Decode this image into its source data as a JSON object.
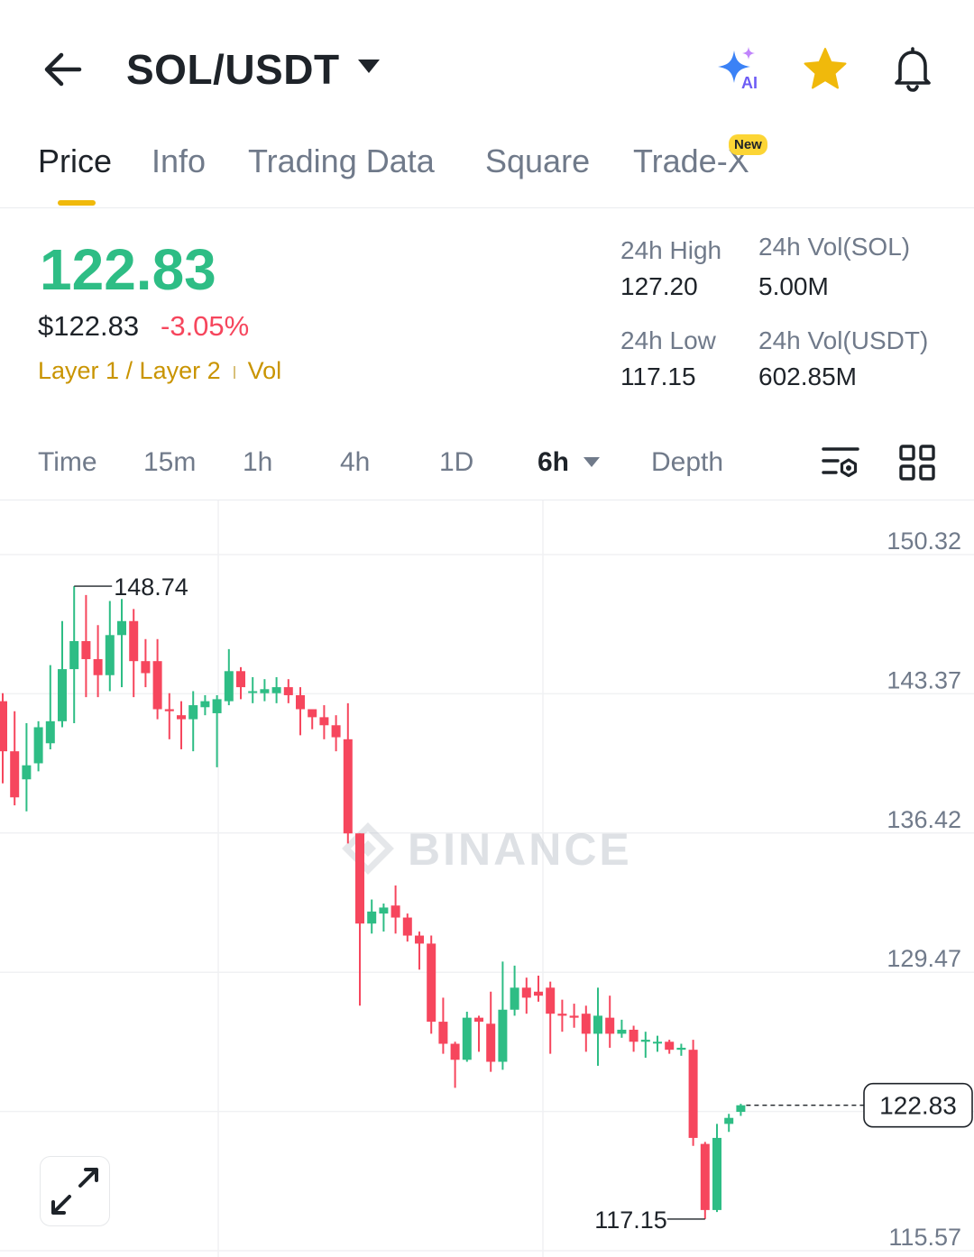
{
  "header": {
    "title": "SOL/USDT",
    "ai_label": "AI"
  },
  "tabs": [
    {
      "label": "Price",
      "active": true
    },
    {
      "label": "Info"
    },
    {
      "label": "Trading Data"
    },
    {
      "label": "Square"
    },
    {
      "label": "Trade-X",
      "badge": "New"
    }
  ],
  "ticker": {
    "last_price": "122.83",
    "usd_price": "$122.83",
    "change": "-3.05%",
    "tag_primary": "Layer 1 / Layer 2",
    "tag_secondary": "Vol",
    "high_label": "24h High",
    "high_value": "127.20",
    "vol_sol_label": "24h Vol(SOL)",
    "vol_sol_value": "5.00M",
    "low_label": "24h Low",
    "low_value": "117.15",
    "vol_usdt_label": "24h Vol(USDT)",
    "vol_usdt_value": "602.85M"
  },
  "timeframes": [
    {
      "label": "Time"
    },
    {
      "label": "15m"
    },
    {
      "label": "1h"
    },
    {
      "label": "4h"
    },
    {
      "label": "1D"
    },
    {
      "label": "6h",
      "active": true
    },
    {
      "label": "Depth"
    }
  ],
  "colors": {
    "up": "#2ebd85",
    "down": "#f6465d",
    "accent": "#f0b90b"
  },
  "chart_data": {
    "type": "candlestick",
    "y_ticks": [
      "150.32",
      "143.37",
      "136.42",
      "129.47",
      "122.53",
      "115.57"
    ],
    "ylim": [
      115.57,
      150.32
    ],
    "max_label": "148.74",
    "min_label": "117.15",
    "last_price_label": "122.83",
    "watermark": "BINANCE",
    "candles": [
      [
        143.0,
        140.5,
        143.4,
        138.9
      ],
      [
        140.5,
        138.2,
        142.5,
        137.8
      ],
      [
        139.1,
        139.8,
        141.9,
        137.5
      ],
      [
        139.9,
        141.7,
        142.0,
        139.5
      ],
      [
        140.9,
        142.0,
        144.8,
        140.6
      ],
      [
        142.0,
        144.6,
        147.0,
        141.7
      ],
      [
        144.6,
        146.0,
        148.74,
        141.9
      ],
      [
        146.0,
        145.1,
        148.3,
        143.2
      ],
      [
        145.1,
        144.3,
        146.8,
        143.2
      ],
      [
        144.3,
        146.3,
        148.0,
        143.5
      ],
      [
        146.3,
        147.0,
        148.1,
        143.7
      ],
      [
        147.0,
        145.0,
        147.6,
        143.2
      ],
      [
        145.0,
        144.4,
        146.1,
        143.7
      ],
      [
        145.0,
        142.6,
        146.1,
        142.1
      ],
      [
        142.6,
        142.5,
        143.4,
        141.1
      ],
      [
        142.3,
        142.1,
        143.0,
        140.6
      ],
      [
        142.1,
        142.8,
        143.5,
        140.5
      ],
      [
        142.7,
        143.0,
        143.3,
        142.3
      ],
      [
        142.4,
        143.1,
        143.3,
        139.7
      ],
      [
        143.0,
        144.5,
        145.6,
        142.8
      ],
      [
        144.5,
        143.7,
        144.7,
        143.1
      ],
      [
        143.5,
        143.5,
        144.2,
        142.9
      ],
      [
        143.4,
        143.6,
        144.1,
        143.0
      ],
      [
        143.4,
        143.7,
        144.2,
        142.9
      ],
      [
        143.7,
        143.3,
        144.1,
        142.9
      ],
      [
        143.3,
        142.6,
        143.7,
        141.3
      ],
      [
        142.6,
        142.2,
        142.6,
        141.6
      ],
      [
        142.2,
        141.8,
        142.8,
        141.1
      ],
      [
        141.8,
        141.2,
        142.3,
        140.5
      ],
      [
        141.1,
        136.4,
        142.9,
        135.9
      ],
      [
        136.4,
        131.9,
        136.4,
        127.8
      ],
      [
        131.9,
        132.5,
        133.1,
        131.4
      ],
      [
        132.4,
        132.7,
        132.9,
        131.5
      ],
      [
        132.8,
        132.2,
        133.8,
        131.4
      ],
      [
        132.2,
        131.3,
        132.4,
        131.0
      ],
      [
        131.3,
        130.9,
        131.5,
        129.6
      ],
      [
        130.9,
        127.0,
        131.3,
        126.4
      ],
      [
        127.0,
        125.9,
        128.2,
        125.4
      ],
      [
        125.9,
        125.1,
        126.0,
        123.7
      ],
      [
        125.1,
        127.2,
        127.5,
        125.0
      ],
      [
        127.2,
        127.0,
        127.3,
        125.5
      ],
      [
        126.9,
        125.0,
        128.5,
        124.5
      ],
      [
        125.0,
        127.6,
        130.0,
        124.6
      ],
      [
        127.6,
        128.7,
        129.8,
        127.3
      ],
      [
        128.7,
        128.2,
        129.2,
        127.4
      ],
      [
        128.5,
        128.3,
        129.3,
        128.0
      ],
      [
        128.7,
        127.4,
        129.0,
        125.4
      ],
      [
        127.4,
        127.3,
        128.1,
        126.5
      ],
      [
        127.3,
        127.2,
        127.9,
        126.7
      ],
      [
        127.4,
        126.4,
        127.8,
        125.5
      ],
      [
        126.4,
        127.3,
        128.7,
        124.8
      ],
      [
        127.2,
        126.4,
        128.3,
        125.7
      ],
      [
        126.4,
        126.6,
        127.1,
        126.2
      ],
      [
        126.6,
        126.0,
        126.8,
        125.5
      ],
      [
        126.0,
        126.1,
        126.5,
        125.2
      ],
      [
        126.0,
        126.0,
        126.3,
        125.5
      ],
      [
        126.0,
        125.6,
        126.1,
        125.4
      ],
      [
        125.6,
        125.7,
        125.9,
        125.3
      ],
      [
        125.6,
        121.2,
        126.1,
        120.8
      ],
      [
        120.9,
        117.6,
        121.0,
        117.15
      ],
      [
        117.6,
        121.2,
        121.9,
        117.5
      ],
      [
        121.9,
        122.2,
        122.4,
        121.5
      ],
      [
        122.5,
        122.83,
        122.9,
        122.3
      ]
    ]
  }
}
